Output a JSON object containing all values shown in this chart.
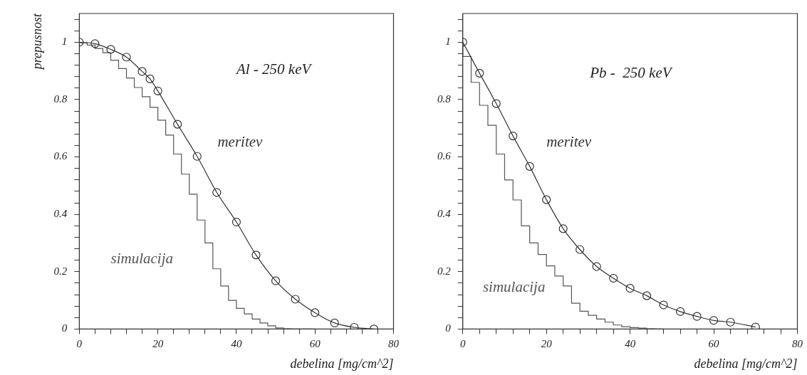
{
  "chart_data": [
    {
      "type": "line",
      "xlabel": "debelina [mg/cm^2]",
      "ylabel": "prepusnost",
      "annotations": [
        "Al - 250 keV"
      ],
      "xlim": [
        0,
        80
      ],
      "ylim": [
        0,
        1.1
      ],
      "xticks": [
        0,
        {
          "value": 4,
          "label": null
        },
        {
          "value": 8,
          "label": null
        },
        {
          "value": 12,
          "label": null
        },
        {
          "value": 16,
          "label": null
        },
        20,
        {
          "value": 24,
          "label": null
        },
        {
          "value": 28,
          "label": null
        },
        {
          "value": 32,
          "label": null
        },
        {
          "value": 36,
          "label": null
        },
        40,
        {
          "value": 44,
          "label": null
        },
        {
          "value": 48,
          "label": null
        },
        {
          "value": 52,
          "label": null
        },
        {
          "value": 56,
          "label": null
        },
        60,
        {
          "value": 64,
          "label": null
        },
        {
          "value": 68,
          "label": null
        },
        {
          "value": 72,
          "label": null
        },
        {
          "value": 76,
          "label": null
        },
        80
      ],
      "yticks": [
        0,
        {
          "value": 0.04,
          "label": null
        },
        {
          "value": 0.08,
          "label": null
        },
        {
          "value": 0.12,
          "label": null
        },
        {
          "value": 0.16,
          "label": null
        },
        0.2,
        {
          "value": 0.24,
          "label": null
        },
        {
          "value": 0.28,
          "label": null
        },
        {
          "value": 0.32,
          "label": null
        },
        {
          "value": 0.36,
          "label": null
        },
        0.4,
        {
          "value": 0.44,
          "label": null
        },
        {
          "value": 0.48,
          "label": null
        },
        {
          "value": 0.52,
          "label": null
        },
        {
          "value": 0.56,
          "label": null
        },
        0.6,
        {
          "value": 0.64,
          "label": null
        },
        {
          "value": 0.68,
          "label": null
        },
        {
          "value": 0.72,
          "label": null
        },
        {
          "value": 0.76,
          "label": null
        },
        0.8,
        {
          "value": 0.84,
          "label": null
        },
        {
          "value": 0.88,
          "label": null
        },
        {
          "value": 0.92,
          "label": null
        },
        {
          "value": 0.96,
          "label": null
        },
        1,
        {
          "value": 1.04,
          "label": null
        },
        {
          "value": 1.08,
          "label": null
        }
      ],
      "series": [
        {
          "name": "meritev",
          "type": "line",
          "marker": "circle",
          "color": "#333333",
          "x": [
            0,
            4,
            8,
            12,
            16,
            18,
            20,
            25,
            30,
            35,
            40,
            45,
            50,
            55,
            60,
            65,
            70,
            75
          ],
          "values": [
            1.0,
            0.995,
            0.975,
            0.948,
            0.898,
            0.872,
            0.83,
            0.714,
            0.602,
            0.476,
            0.373,
            0.258,
            0.168,
            0.104,
            0.057,
            0.021,
            0.006,
            0.0
          ]
        },
        {
          "name": "simulacija",
          "type": "step",
          "marker": "none",
          "color": "#555555",
          "x": [
            0,
            2,
            4,
            6,
            8,
            10,
            12,
            14,
            16,
            18,
            20,
            22,
            24,
            26,
            28,
            30,
            32,
            34,
            36,
            38,
            40,
            42,
            44,
            46,
            48,
            50,
            52,
            54,
            56,
            60
          ],
          "values": [
            1.0,
            0.998,
            0.99,
            0.978,
            0.963,
            0.937,
            0.908,
            0.875,
            0.842,
            0.81,
            0.773,
            0.728,
            0.676,
            0.61,
            0.54,
            0.47,
            0.38,
            0.3,
            0.21,
            0.15,
            0.1,
            0.072,
            0.053,
            0.035,
            0.021,
            0.011,
            0.004,
            0.001,
            0.0,
            0.0
          ]
        }
      ]
    },
    {
      "type": "line",
      "xlabel": "debelina [mg/cm^2]",
      "annotations": [
        "Pb -  250 keV"
      ],
      "xlim": [
        0,
        80
      ],
      "ylim": [
        0,
        1.1
      ],
      "xticks": [
        0,
        {
          "value": 4,
          "label": null
        },
        {
          "value": 8,
          "label": null
        },
        {
          "value": 12,
          "label": null
        },
        {
          "value": 16,
          "label": null
        },
        20,
        {
          "value": 24,
          "label": null
        },
        {
          "value": 28,
          "label": null
        },
        {
          "value": 32,
          "label": null
        },
        {
          "value": 36,
          "label": null
        },
        40,
        {
          "value": 44,
          "label": null
        },
        {
          "value": 48,
          "label": null
        },
        {
          "value": 52,
          "label": null
        },
        {
          "value": 56,
          "label": null
        },
        60,
        {
          "value": 64,
          "label": null
        },
        {
          "value": 68,
          "label": null
        },
        {
          "value": 72,
          "label": null
        },
        {
          "value": 76,
          "label": null
        },
        80
      ],
      "yticks": [
        0,
        {
          "value": 0.04,
          "label": null
        },
        {
          "value": 0.08,
          "label": null
        },
        {
          "value": 0.12,
          "label": null
        },
        {
          "value": 0.16,
          "label": null
        },
        0.2,
        {
          "value": 0.24,
          "label": null
        },
        {
          "value": 0.28,
          "label": null
        },
        {
          "value": 0.32,
          "label": null
        },
        {
          "value": 0.36,
          "label": null
        },
        0.4,
        {
          "value": 0.44,
          "label": null
        },
        {
          "value": 0.48,
          "label": null
        },
        {
          "value": 0.52,
          "label": null
        },
        {
          "value": 0.56,
          "label": null
        },
        0.6,
        {
          "value": 0.64,
          "label": null
        },
        {
          "value": 0.68,
          "label": null
        },
        {
          "value": 0.72,
          "label": null
        },
        {
          "value": 0.76,
          "label": null
        },
        0.8,
        {
          "value": 0.84,
          "label": null
        },
        {
          "value": 0.88,
          "label": null
        },
        {
          "value": 0.92,
          "label": null
        },
        {
          "value": 0.96,
          "label": null
        },
        1,
        {
          "value": 1.04,
          "label": null
        },
        {
          "value": 1.08,
          "label": null
        }
      ],
      "series": [
        {
          "name": "meritev",
          "type": "line",
          "marker": "circle",
          "color": "#333333",
          "x": [
            0,
            4,
            8,
            12,
            16,
            20,
            24,
            28,
            32,
            36,
            40,
            44,
            48,
            52,
            56,
            60,
            64,
            70
          ],
          "values": [
            1.0,
            0.892,
            0.786,
            0.673,
            0.567,
            0.451,
            0.35,
            0.277,
            0.218,
            0.177,
            0.142,
            0.116,
            0.084,
            0.061,
            0.044,
            0.03,
            0.024,
            0.007
          ]
        },
        {
          "name": "simulacija",
          "type": "step",
          "marker": "none",
          "color": "#555555",
          "x": [
            0,
            2,
            4,
            6,
            8,
            10,
            12,
            14,
            16,
            18,
            20,
            22,
            24,
            26,
            28,
            30,
            32,
            34,
            36,
            38,
            40,
            42,
            44,
            46,
            48
          ],
          "values": [
            1.0,
            0.95,
            0.86,
            0.78,
            0.71,
            0.61,
            0.52,
            0.45,
            0.36,
            0.3,
            0.26,
            0.22,
            0.185,
            0.15,
            0.09,
            0.062,
            0.048,
            0.035,
            0.024,
            0.014,
            0.008,
            0.005,
            0.003,
            0.001,
            0.0
          ]
        }
      ]
    }
  ]
}
